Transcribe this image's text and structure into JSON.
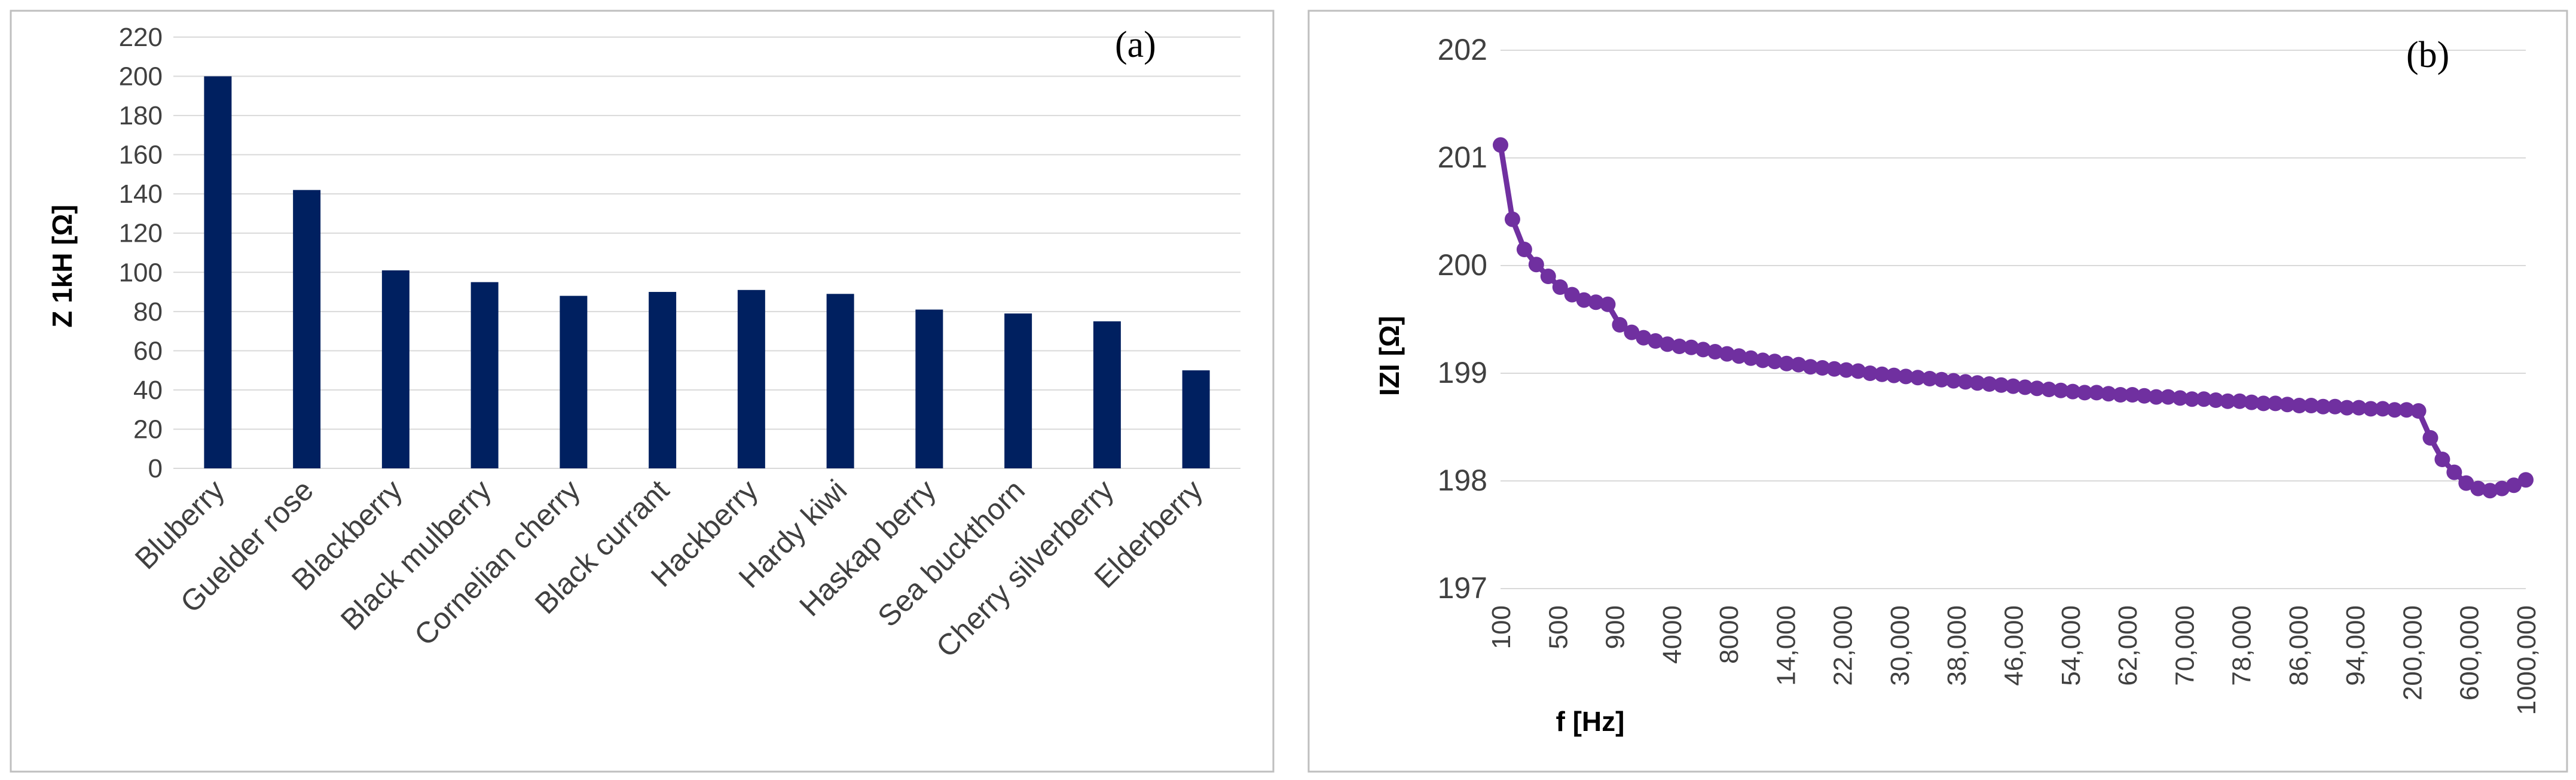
{
  "colors": {
    "bar": "#002060",
    "line": "#7030A0",
    "grid": "#d9d9d9",
    "frame": "#bfbfbf"
  },
  "chart_data": [
    {
      "type": "bar",
      "panel_label": "(a)",
      "title": "",
      "xlabel": "",
      "ylabel": "Z 1kH [Ω]",
      "ylim": [
        0,
        220
      ],
      "yticks": [
        "0",
        "20",
        "40",
        "60",
        "80",
        "100",
        "120",
        "140",
        "160",
        "180",
        "200",
        "220"
      ],
      "grid": true,
      "categories": [
        "Bluberry",
        "Guelder rose",
        "Blackberry",
        "Black mulberry",
        "Cornelian cherry",
        "Black currant",
        "Hackberry",
        "Hardy kiwi",
        "Haskap berry",
        "Sea buckthorn",
        "Cherry silverberry",
        "Elderberry"
      ],
      "values": [
        200,
        142,
        101,
        95,
        88,
        90,
        91,
        89,
        81,
        79,
        75,
        50
      ]
    },
    {
      "type": "line",
      "panel_label": "(b)",
      "title": "",
      "xlabel": "f [Hz]",
      "ylabel": "IZI [Ω]",
      "ylim": [
        197,
        202
      ],
      "yticks": [
        "197",
        "198",
        "199",
        "200",
        "201",
        "202"
      ],
      "grid": true,
      "xtick_labels": [
        "100",
        "500",
        "900",
        "4000",
        "8000",
        "14,000",
        "22,000",
        "30,000",
        "38,000",
        "46,000",
        "54,000",
        "62,000",
        "70,000",
        "78,000",
        "86,000",
        "94,000",
        "200,000",
        "600,000",
        "1000,000"
      ],
      "values": [
        201.12,
        200.43,
        200.15,
        200.01,
        199.9,
        199.8,
        199.73,
        199.68,
        199.66,
        199.64,
        199.45,
        199.38,
        199.33,
        199.3,
        199.27,
        199.25,
        199.24,
        199.22,
        199.2,
        199.18,
        199.16,
        199.14,
        199.12,
        199.11,
        199.09,
        199.08,
        199.06,
        199.05,
        199.04,
        199.03,
        199.02,
        199.0,
        198.99,
        198.98,
        198.97,
        198.96,
        198.95,
        198.94,
        198.93,
        198.92,
        198.91,
        198.9,
        198.89,
        198.88,
        198.87,
        198.86,
        198.85,
        198.84,
        198.83,
        198.82,
        198.82,
        198.81,
        198.8,
        198.8,
        198.79,
        198.78,
        198.78,
        198.77,
        198.76,
        198.76,
        198.75,
        198.74,
        198.74,
        198.73,
        198.72,
        198.72,
        198.71,
        198.7,
        198.7,
        198.69,
        198.69,
        198.68,
        198.68,
        198.67,
        198.67,
        198.66,
        198.66,
        198.65,
        198.4,
        198.2,
        198.08,
        197.98,
        197.93,
        197.91,
        197.93,
        197.96,
        198.01
      ]
    }
  ]
}
